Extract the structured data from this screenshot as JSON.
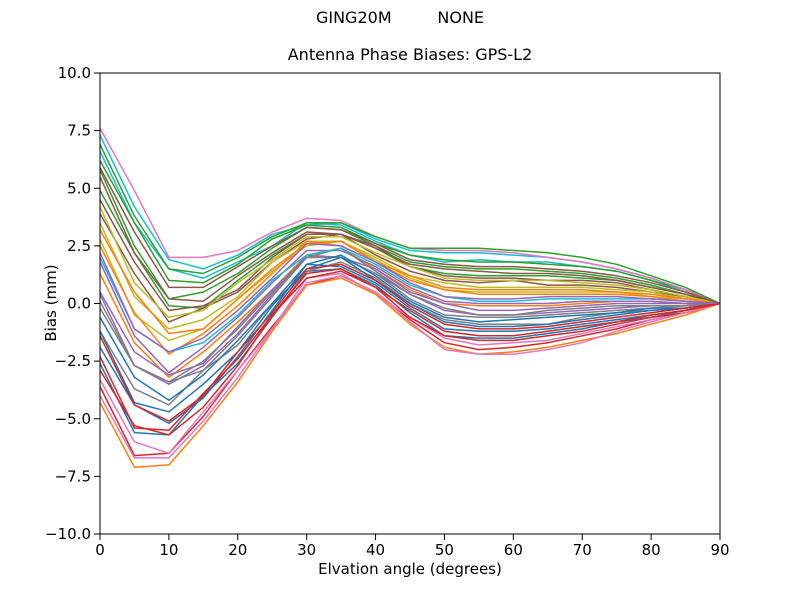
{
  "suptitle": "GING20M         NONE",
  "colors": {
    "background": "#ffffff",
    "frame": "#000000",
    "text": "#000000"
  },
  "chart_data": {
    "type": "line",
    "title": "Antenna Phase Biases: GPS-L2",
    "xlabel": "Elvation angle (degrees)",
    "ylabel": "Bias (mm)",
    "xlim": [
      0,
      90
    ],
    "ylim": [
      -10,
      10
    ],
    "xticks": [
      0,
      10,
      20,
      30,
      40,
      50,
      60,
      70,
      80,
      90
    ],
    "yticks": [
      -10,
      -7.5,
      -5,
      -2.5,
      0,
      2.5,
      5,
      7.5,
      10
    ],
    "ytick_labels": [
      "−10.0",
      "−7.5",
      "−5.0",
      "−2.5",
      "0.0",
      "2.5",
      "5.0",
      "7.5",
      "10.0"
    ],
    "grid": false,
    "legend": false,
    "line_width": 1.5,
    "palette": [
      "#1f77b4",
      "#ff7f0e",
      "#2ca02c",
      "#d62728",
      "#9467bd",
      "#8c564b",
      "#e377c2",
      "#7f7f7f",
      "#bcbd22",
      "#17becf"
    ],
    "x": [
      0,
      5,
      10,
      15,
      20,
      25,
      30,
      35,
      40,
      45,
      50,
      55,
      60,
      65,
      70,
      75,
      80,
      85,
      90
    ],
    "series": [
      {
        "color": "#1f77b4",
        "y": [
          -2.6,
          -5.6,
          -5.7,
          -4.0,
          -2.6,
          -0.6,
          1.4,
          1.5,
          0.8,
          -0.4,
          -1.4,
          -1.5,
          -1.5,
          -1.3,
          -1.1,
          -0.8,
          -0.6,
          -0.3,
          0
        ]
      },
      {
        "color": "#ff7f0e",
        "y": [
          1.3,
          -1.7,
          -3.2,
          -2.1,
          -0.8,
          0.6,
          2.1,
          2.4,
          1.5,
          0.6,
          0.0,
          -0.1,
          -0.1,
          -0.1,
          0.0,
          0.1,
          0.1,
          0.0,
          0
        ]
      },
      {
        "color": "#2ca02c",
        "y": [
          4.9,
          2.2,
          -0.1,
          -0.2,
          1.0,
          2.1,
          3.0,
          3.0,
          2.4,
          1.6,
          1.3,
          1.2,
          1.2,
          1.2,
          1.1,
          1.0,
          0.7,
          0.4,
          0
        ]
      },
      {
        "color": "#d62728",
        "y": [
          -3.6,
          -6.6,
          -6.5,
          -4.9,
          -2.9,
          -1.0,
          0.8,
          1.2,
          0.5,
          -0.7,
          -1.7,
          -2.0,
          -1.9,
          -1.7,
          -1.4,
          -1.1,
          -0.7,
          -0.4,
          0
        ]
      },
      {
        "color": "#9467bd",
        "y": [
          0.4,
          -2.7,
          -3.5,
          -2.7,
          -1.3,
          0.4,
          2.1,
          2.0,
          1.3,
          0.4,
          -0.3,
          -0.5,
          -0.5,
          -0.4,
          -0.3,
          -0.2,
          -0.1,
          -0.1,
          0
        ]
      },
      {
        "color": "#8c564b",
        "y": [
          3.9,
          1.3,
          -0.8,
          -0.2,
          0.5,
          1.8,
          2.8,
          3.0,
          2.1,
          1.4,
          1.0,
          0.9,
          1.0,
          0.8,
          0.8,
          0.7,
          0.5,
          0.3,
          0
        ]
      },
      {
        "color": "#e377c2",
        "y": [
          -3.3,
          -6.0,
          -6.5,
          -4.7,
          -2.9,
          -1.1,
          1.1,
          1.3,
          0.4,
          -0.6,
          -1.5,
          -1.8,
          -1.7,
          -1.6,
          -1.3,
          -1.0,
          -0.7,
          -0.4,
          0
        ]
      },
      {
        "color": "#7f7f7f",
        "y": [
          -1.2,
          -3.7,
          -4.4,
          -2.9,
          -1.8,
          0.0,
          1.4,
          1.8,
          1.1,
          0.0,
          -0.7,
          -0.9,
          -0.9,
          -0.9,
          -0.6,
          -0.4,
          -0.3,
          -0.2,
          0
        ]
      },
      {
        "color": "#bcbd22",
        "y": [
          2.8,
          -0.5,
          -1.6,
          -1.1,
          0.2,
          1.4,
          2.5,
          2.7,
          1.9,
          1.1,
          0.6,
          0.5,
          0.5,
          0.5,
          0.5,
          0.5,
          0.3,
          0.2,
          0
        ]
      },
      {
        "color": "#17becf",
        "y": [
          6.6,
          3.5,
          1.5,
          1.1,
          1.8,
          2.5,
          3.5,
          3.4,
          2.7,
          2.1,
          1.8,
          1.9,
          1.8,
          1.8,
          1.6,
          1.4,
          1.0,
          0.5,
          0
        ]
      },
      {
        "color": "#1f77b4",
        "y": [
          -1.9,
          -4.4,
          -5.2,
          -4.1,
          -2.3,
          -0.3,
          1.7,
          1.6,
          0.9,
          -0.2,
          -1.1,
          -1.2,
          -1.2,
          -1.1,
          -0.9,
          -0.7,
          -0.5,
          -0.3,
          0
        ]
      },
      {
        "color": "#ff7f0e",
        "y": [
          -4.3,
          -7.1,
          -7.0,
          -5.3,
          -3.4,
          -1.2,
          0.8,
          1.1,
          0.4,
          -0.9,
          -1.9,
          -2.2,
          -2.1,
          -1.9,
          -1.6,
          -1.3,
          -0.9,
          -0.5,
          0
        ]
      },
      {
        "color": "#2ca02c",
        "y": [
          5.8,
          2.5,
          0.2,
          0.5,
          1.3,
          2.4,
          3.3,
          3.2,
          2.5,
          1.8,
          1.6,
          1.5,
          1.5,
          1.4,
          1.3,
          1.1,
          0.8,
          0.4,
          0
        ]
      },
      {
        "color": "#d62728",
        "y": [
          -2.9,
          -5.3,
          -5.7,
          -4.5,
          -2.7,
          -0.5,
          1.1,
          1.4,
          0.7,
          -0.6,
          -1.4,
          -1.6,
          -1.6,
          -1.4,
          -1.2,
          -0.9,
          -0.6,
          -0.4,
          0
        ]
      },
      {
        "color": "#9467bd",
        "y": [
          0.5,
          -2.1,
          -3.1,
          -2.6,
          -1.0,
          0.6,
          2.0,
          2.0,
          1.5,
          0.5,
          0.0,
          -0.3,
          -0.3,
          -0.2,
          -0.1,
          0.0,
          0.0,
          0.0,
          0
        ]
      },
      {
        "color": "#8c564b",
        "y": [
          4.5,
          1.8,
          -0.3,
          -0.1,
          0.6,
          2.0,
          3.0,
          3.0,
          2.5,
          1.6,
          1.2,
          1.1,
          1.1,
          1.0,
          1.0,
          0.9,
          0.6,
          0.3,
          0
        ]
      },
      {
        "color": "#e377c2",
        "y": [
          -4.0,
          -6.7,
          -6.7,
          -5.1,
          -3.2,
          -1.1,
          0.9,
          1.2,
          0.5,
          -0.8,
          -2.0,
          -2.2,
          -2.2,
          -2.0,
          -1.7,
          -1.2,
          -0.8,
          -0.4,
          0
        ]
      },
      {
        "color": "#7f7f7f",
        "y": [
          -0.2,
          -2.7,
          -3.4,
          -2.9,
          -1.4,
          0.3,
          2.0,
          2.0,
          1.3,
          0.2,
          -0.5,
          -0.6,
          -0.6,
          -0.5,
          -0.4,
          -0.3,
          -0.2,
          -0.1,
          0
        ]
      },
      {
        "color": "#bcbd22",
        "y": [
          3.5,
          0.3,
          -1.1,
          -0.7,
          0.3,
          1.8,
          2.7,
          2.7,
          2.0,
          1.2,
          0.9,
          0.7,
          0.7,
          0.7,
          0.7,
          0.6,
          0.5,
          0.2,
          0
        ]
      },
      {
        "color": "#17becf",
        "y": [
          7.3,
          4.2,
          1.9,
          1.5,
          2.1,
          3.0,
          3.4,
          3.5,
          2.8,
          2.3,
          2.2,
          2.2,
          2.1,
          2.0,
          1.8,
          1.5,
          1.1,
          0.6,
          0
        ]
      },
      {
        "color": "#1f77b4",
        "y": [
          -1.2,
          -4.3,
          -4.7,
          -3.5,
          -2.1,
          -0.1,
          1.5,
          2.0,
          1.0,
          0.0,
          -0.8,
          -1.0,
          -1.0,
          -0.9,
          -0.7,
          -0.5,
          -0.3,
          -0.2,
          0
        ]
      },
      {
        "color": "#ff7f0e",
        "y": [
          2.5,
          -0.4,
          -2.2,
          -1.3,
          -0.1,
          1.3,
          2.7,
          2.5,
          1.8,
          1.0,
          0.6,
          0.4,
          0.4,
          0.4,
          0.4,
          0.4,
          0.3,
          0.1,
          0
        ]
      },
      {
        "color": "#2ca02c",
        "y": [
          6.2,
          3.5,
          1.0,
          0.9,
          1.7,
          2.8,
          3.4,
          3.3,
          2.6,
          2.1,
          1.9,
          1.8,
          1.8,
          1.7,
          1.6,
          1.4,
          1.0,
          0.6,
          0
        ]
      },
      {
        "color": "#d62728",
        "y": [
          -2.3,
          -5.4,
          -5.5,
          -3.9,
          -2.4,
          -0.5,
          1.3,
          1.5,
          0.7,
          -0.3,
          -1.2,
          -1.4,
          -1.4,
          -1.2,
          -1.0,
          -0.8,
          -0.5,
          -0.3,
          0
        ]
      },
      {
        "color": "#9467bd",
        "y": [
          1.8,
          -1.4,
          -3.0,
          -1.9,
          -0.6,
          0.9,
          2.3,
          2.3,
          1.6,
          0.7,
          0.1,
          0.0,
          0.0,
          0.0,
          0.1,
          0.1,
          0.1,
          0.0,
          0
        ]
      },
      {
        "color": "#8c564b",
        "y": [
          5.5,
          2.2,
          0.2,
          0.1,
          1.2,
          2.2,
          3.1,
          3.0,
          2.4,
          1.7,
          1.5,
          1.4,
          1.3,
          1.3,
          1.2,
          1.0,
          0.7,
          0.4,
          0
        ]
      },
      {
        "color": "#e377c2",
        "y": [
          7.6,
          4.9,
          2.0,
          2.0,
          2.3,
          3.1,
          3.7,
          3.6,
          2.9,
          2.4,
          2.3,
          2.3,
          2.2,
          2.0,
          1.8,
          1.5,
          1.1,
          0.6,
          0
        ]
      },
      {
        "color": "#7f7f7f",
        "y": [
          0.1,
          -2.7,
          -3.4,
          -2.5,
          -1.1,
          0.5,
          2.0,
          2.4,
          1.4,
          0.4,
          -0.2,
          -0.5,
          -0.5,
          -0.3,
          -0.2,
          -0.1,
          -0.1,
          -0.1,
          0
        ]
      },
      {
        "color": "#bcbd22",
        "y": [
          4.2,
          0.9,
          -0.6,
          -0.3,
          0.9,
          1.9,
          2.9,
          2.9,
          2.2,
          1.6,
          1.1,
          1.0,
          1.0,
          1.0,
          0.9,
          0.8,
          0.6,
          0.3,
          0
        ]
      },
      {
        "color": "#17becf",
        "y": [
          2.0,
          -1.1,
          -2.1,
          -1.7,
          -0.5,
          1.0,
          2.1,
          2.4,
          1.7,
          0.8,
          0.3,
          0.1,
          0.1,
          0.2,
          0.2,
          0.2,
          0.2,
          0.1,
          0
        ]
      },
      {
        "color": "#1f77b4",
        "y": [
          -0.6,
          -3.2,
          -4.2,
          -3.1,
          -1.6,
          0.0,
          1.7,
          2.1,
          1.2,
          0.1,
          -0.6,
          -0.8,
          -0.7,
          -0.6,
          -0.5,
          -0.4,
          -0.2,
          -0.2,
          0
        ]
      },
      {
        "color": "#ff7f0e",
        "y": [
          3.2,
          0.5,
          -1.3,
          -1.1,
          0.2,
          1.5,
          2.6,
          2.7,
          1.8,
          1.2,
          0.7,
          0.6,
          0.6,
          0.6,
          0.6,
          0.5,
          0.4,
          0.2,
          0
        ]
      },
      {
        "color": "#2ca02c",
        "y": [
          6.9,
          3.8,
          1.5,
          1.3,
          2.0,
          2.9,
          3.5,
          3.5,
          2.9,
          2.4,
          2.4,
          2.4,
          2.3,
          2.2,
          2.0,
          1.7,
          1.2,
          0.7,
          0
        ]
      },
      {
        "color": "#d62728",
        "y": [
          -1.4,
          -4.4,
          -5.1,
          -4.0,
          -2.1,
          -0.4,
          1.5,
          1.7,
          1.0,
          -0.1,
          -0.9,
          -1.1,
          -1.1,
          -1.0,
          -0.8,
          -0.6,
          -0.4,
          -0.2,
          0
        ]
      },
      {
        "color": "#9467bd",
        "y": [
          2.2,
          -1.1,
          -2.1,
          -1.5,
          -0.3,
          1.1,
          2.6,
          2.5,
          1.8,
          0.9,
          0.3,
          0.2,
          0.2,
          0.3,
          0.3,
          0.3,
          0.2,
          0.1,
          0
        ]
      },
      {
        "color": "#8c564b",
        "y": [
          5.9,
          3.1,
          0.7,
          0.7,
          1.6,
          2.5,
          3.3,
          3.2,
          2.6,
          1.9,
          1.7,
          1.6,
          1.6,
          1.5,
          1.4,
          1.2,
          0.9,
          0.5,
          0
        ]
      }
    ]
  }
}
